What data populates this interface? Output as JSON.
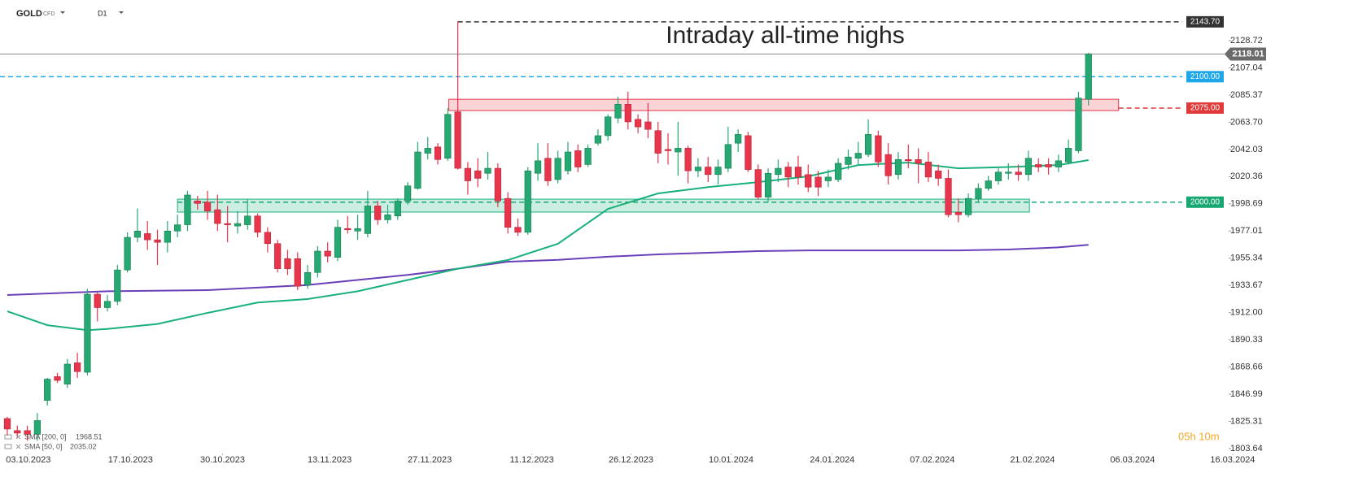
{
  "header": {
    "symbol": "GOLD",
    "kind": "CFD",
    "timeframe": "D1"
  },
  "timer": "05h 10m",
  "chart_data": {
    "type": "candlestick",
    "annotation": "Intraday all-time highs",
    "up_color": "#26a872",
    "down_color": "#e8354b",
    "xlim": [
      -0.73,
      122.0
    ],
    "xticks": [
      {
        "value": 2.1,
        "label": "03.10.2023"
      },
      {
        "value": 12.3,
        "label": "17.10.2023"
      },
      {
        "value": 21.5,
        "label": "30.10.2023"
      },
      {
        "value": 32.2,
        "label": "13.11.2023"
      },
      {
        "value": 42.2,
        "label": "27.11.2023"
      },
      {
        "value": 52.4,
        "label": "11.12.2023"
      },
      {
        "value": 62.3,
        "label": "26.12.2023"
      },
      {
        "value": 72.3,
        "label": "10.01.2024"
      },
      {
        "value": 82.4,
        "label": "24.01.2024"
      },
      {
        "value": 92.4,
        "label": "07.02.2024"
      },
      {
        "value": 102.4,
        "label": "21.02.2024"
      },
      {
        "value": 112.4,
        "label": "06.03.2024"
      },
      {
        "value": 122.4,
        "label": "16.03.2024"
      }
    ],
    "ylim": [
      1800.4,
      2161.1
    ],
    "yticks": [
      2128.72,
      2107.04,
      2085.37,
      {
        "value": 2063.7,
        "label": "2063.70"
      },
      2042.03,
      2020.36,
      1998.69,
      1977.01,
      1955.34,
      1933.67,
      {
        "value": 1912.0,
        "label": "1912.00"
      },
      1890.33,
      1868.66,
      1846.99,
      1825.31,
      1803.64
    ],
    "open": [
      1827.6,
      1818,
      1818,
      1815,
      1842,
      1861,
      1855,
      1872,
      1864.5,
      1926.7,
      1916,
      1921,
      1946,
      1972,
      1975,
      1970,
      1968,
      1977,
      1982,
      2001,
      2000,
      1994,
      1983,
      1981,
      1982,
      1989,
      1976,
      1967,
      1955,
      1955,
      1934,
      1944,
      1961,
      1956,
      1979,
      1977,
      1975,
      1997,
      1986,
      1989,
      2001,
      2011,
      2039,
      2044,
      2035,
      2072,
      2027,
      2025,
      2023,
      2027,
      2003,
      1980,
      1976,
      2023,
      2035,
      2018,
      2025,
      2041,
      2030,
      2047,
      2053,
      2067,
      2078,
      2066,
      2064,
      2057,
      2042,
      2040,
      2043,
      2025,
      2028,
      2022,
      2027,
      2047,
      2053,
      2026,
      2004,
      2022,
      2028,
      2028,
      2022,
      2020,
      2017,
      2018,
      2030,
      2035,
      2038,
      2053,
      2038,
      2022,
      2034,
      2034,
      2032,
      2025,
      2019,
      1992,
      1990,
      2003,
      2011,
      2017,
      2023,
      2024,
      2022,
      2030,
      2030,
      2028,
      2032,
      2041,
      2082
    ],
    "high": [
      1829,
      1822,
      1822,
      1832,
      1860,
      1864,
      1875,
      1880,
      1931,
      1928,
      1926,
      1950,
      1976,
      1995,
      1985,
      1978,
      1985,
      1990,
      2009,
      2005,
      2009,
      2006,
      1997,
      1993,
      2002,
      1991,
      1980,
      1970,
      1962,
      1960,
      1950,
      1965,
      1968,
      1986,
      1989,
      1990,
      2009,
      2001,
      1998,
      2003,
      2016,
      2048,
      2052,
      2047,
      2075,
      2144,
      2032,
      2035,
      2040,
      2031,
      2008,
      1987,
      2028,
      2047,
      2047,
      2041,
      2048,
      2046,
      2046,
      2058,
      2070,
      2084,
      2088,
      2070,
      2079,
      2064,
      2055,
      2064,
      2045,
      2035,
      2036,
      2034,
      2060,
      2058,
      2056,
      2030,
      2027,
      2034,
      2032,
      2037,
      2030,
      2025,
      2026,
      2035,
      2042,
      2048,
      2066,
      2057,
      2047,
      2040,
      2046,
      2043,
      2040,
      2030,
      2026,
      2003,
      2007,
      2015,
      2021,
      2027,
      2031,
      2030,
      2041,
      2035,
      2035,
      2038,
      2050,
      2088,
      2119
    ],
    "low": [
      1814,
      1812,
      1810,
      1810,
      1838,
      1856,
      1852,
      1860,
      1862,
      1905,
      1913,
      1918,
      1944,
      1968,
      1962,
      1950,
      1960,
      1972,
      1977,
      1994,
      1986,
      1977,
      1968,
      1975,
      1978,
      1972,
      1960,
      1944,
      1942,
      1930,
      1931,
      1940,
      1952,
      1953,
      1975,
      1970,
      1972,
      1982,
      1983,
      1986,
      1998,
      2010,
      2034,
      2030,
      2033,
      2026,
      2006,
      2012,
      2018,
      1996,
      1975,
      1973,
      1974,
      2017,
      2013,
      2015,
      2022,
      2024,
      2028,
      2045,
      2049,
      2063,
      2058,
      2055,
      2051,
      2031,
      2030,
      2021,
      2015,
      2020,
      2016,
      2014,
      2024,
      2040,
      2024,
      2002,
      2000,
      2016,
      2012,
      2014,
      2008,
      2005,
      2012,
      2016,
      2026,
      2030,
      2036,
      2028,
      2014,
      2018,
      2027,
      2015,
      2016,
      2013,
      1988,
      1984,
      1988,
      2000,
      2009,
      2014,
      2018,
      2017,
      2017,
      2024,
      2022,
      2024,
      2030,
      2039,
      2077
    ],
    "close": [
      1819.2,
      1816,
      1815,
      1826,
      1859,
      1858,
      1871,
      1865,
      1926.7,
      1916,
      1921,
      1946,
      1972,
      1977,
      1970,
      1968,
      1977,
      1982,
      2005.7,
      1999,
      1993,
      1983,
      1982,
      1983,
      1989,
      1976,
      1967,
      1947,
      1947,
      1933,
      1944,
      1961,
      1957,
      1980,
      1978,
      1979,
      1997,
      1986,
      1990,
      2001,
      2013,
      2040,
      2043,
      2034,
      2070,
      2027,
      2017,
      2019,
      2027,
      2001,
      1980,
      1976,
      2025,
      2033,
      2017,
      2035,
      2040,
      2028,
      2043,
      2053,
      2068,
      2078,
      2064,
      2060,
      2058,
      2039,
      2041,
      2043,
      2025,
      2028,
      2022,
      2028,
      2046,
      2054,
      2026,
      2004,
      2023,
      2027,
      2020,
      2020,
      2012,
      2012,
      2020,
      2031,
      2036,
      2039,
      2054,
      2032,
      2021,
      2034,
      2033,
      2031,
      2020,
      2019,
      1990,
      1990,
      2003,
      2011,
      2017,
      2024,
      2024,
      2022,
      2035,
      2028,
      2028,
      2033,
      2043,
      2083,
      2118.01
    ],
    "last_price": 2118.01,
    "series": [
      {
        "name": "SMA [200, 0]",
        "last_value": 1968.51,
        "color": "#6a3fb8",
        "x": [
          0,
          10,
          20,
          30,
          40,
          45,
          50,
          55,
          60,
          65,
          70,
          75,
          80,
          95,
          100,
          105,
          108
        ],
        "values": [
          1926,
          1929,
          1929.9,
          1934,
          1942,
          1947,
          1952.6,
          1954,
          1956.5,
          1958.4,
          1959.7,
          1961,
          1961.6,
          1961.6,
          1962.3,
          1964,
          1966
        ]
      },
      {
        "name": "SMA [50, 0]",
        "last_value": 2035.02,
        "color": "#19b07a",
        "x": [
          0,
          4,
          8,
          10,
          15,
          20,
          25,
          30,
          35,
          40,
          45,
          50,
          55,
          60,
          65,
          70,
          75,
          80,
          85,
          90,
          95,
          100,
          105,
          108
        ],
        "values": [
          1913,
          1902,
          1898,
          1899,
          1903,
          1911.8,
          1920,
          1922.8,
          1929,
          1938,
          1947,
          1953.9,
          1966.8,
          1994.7,
          2007,
          2012,
          2016,
          2020.6,
          2029.6,
          2031.6,
          2027,
          2028,
          2029.6,
          2033.5
        ]
      }
    ],
    "zones": [
      {
        "from": 44.1,
        "to": 111,
        "low": 2073,
        "high": 2082,
        "color": "#e8354b"
      },
      {
        "from": 17,
        "to": 102.1,
        "low": 1992.1,
        "high": 2002.4,
        "color": "#19b07a"
      }
    ],
    "levels": [
      {
        "value": 2143.7,
        "label": "2143.70",
        "color": "#333333",
        "from": 45
      },
      {
        "value": 2100.0,
        "label": "2100.00",
        "color": "#1ea7e8"
      },
      {
        "value": 2075.0,
        "label": "2075.00",
        "color": "#e03a3a",
        "from": 111
      },
      {
        "value": 2000.0,
        "label": "2000.00",
        "color": "#16a870",
        "from": 17
      }
    ]
  }
}
